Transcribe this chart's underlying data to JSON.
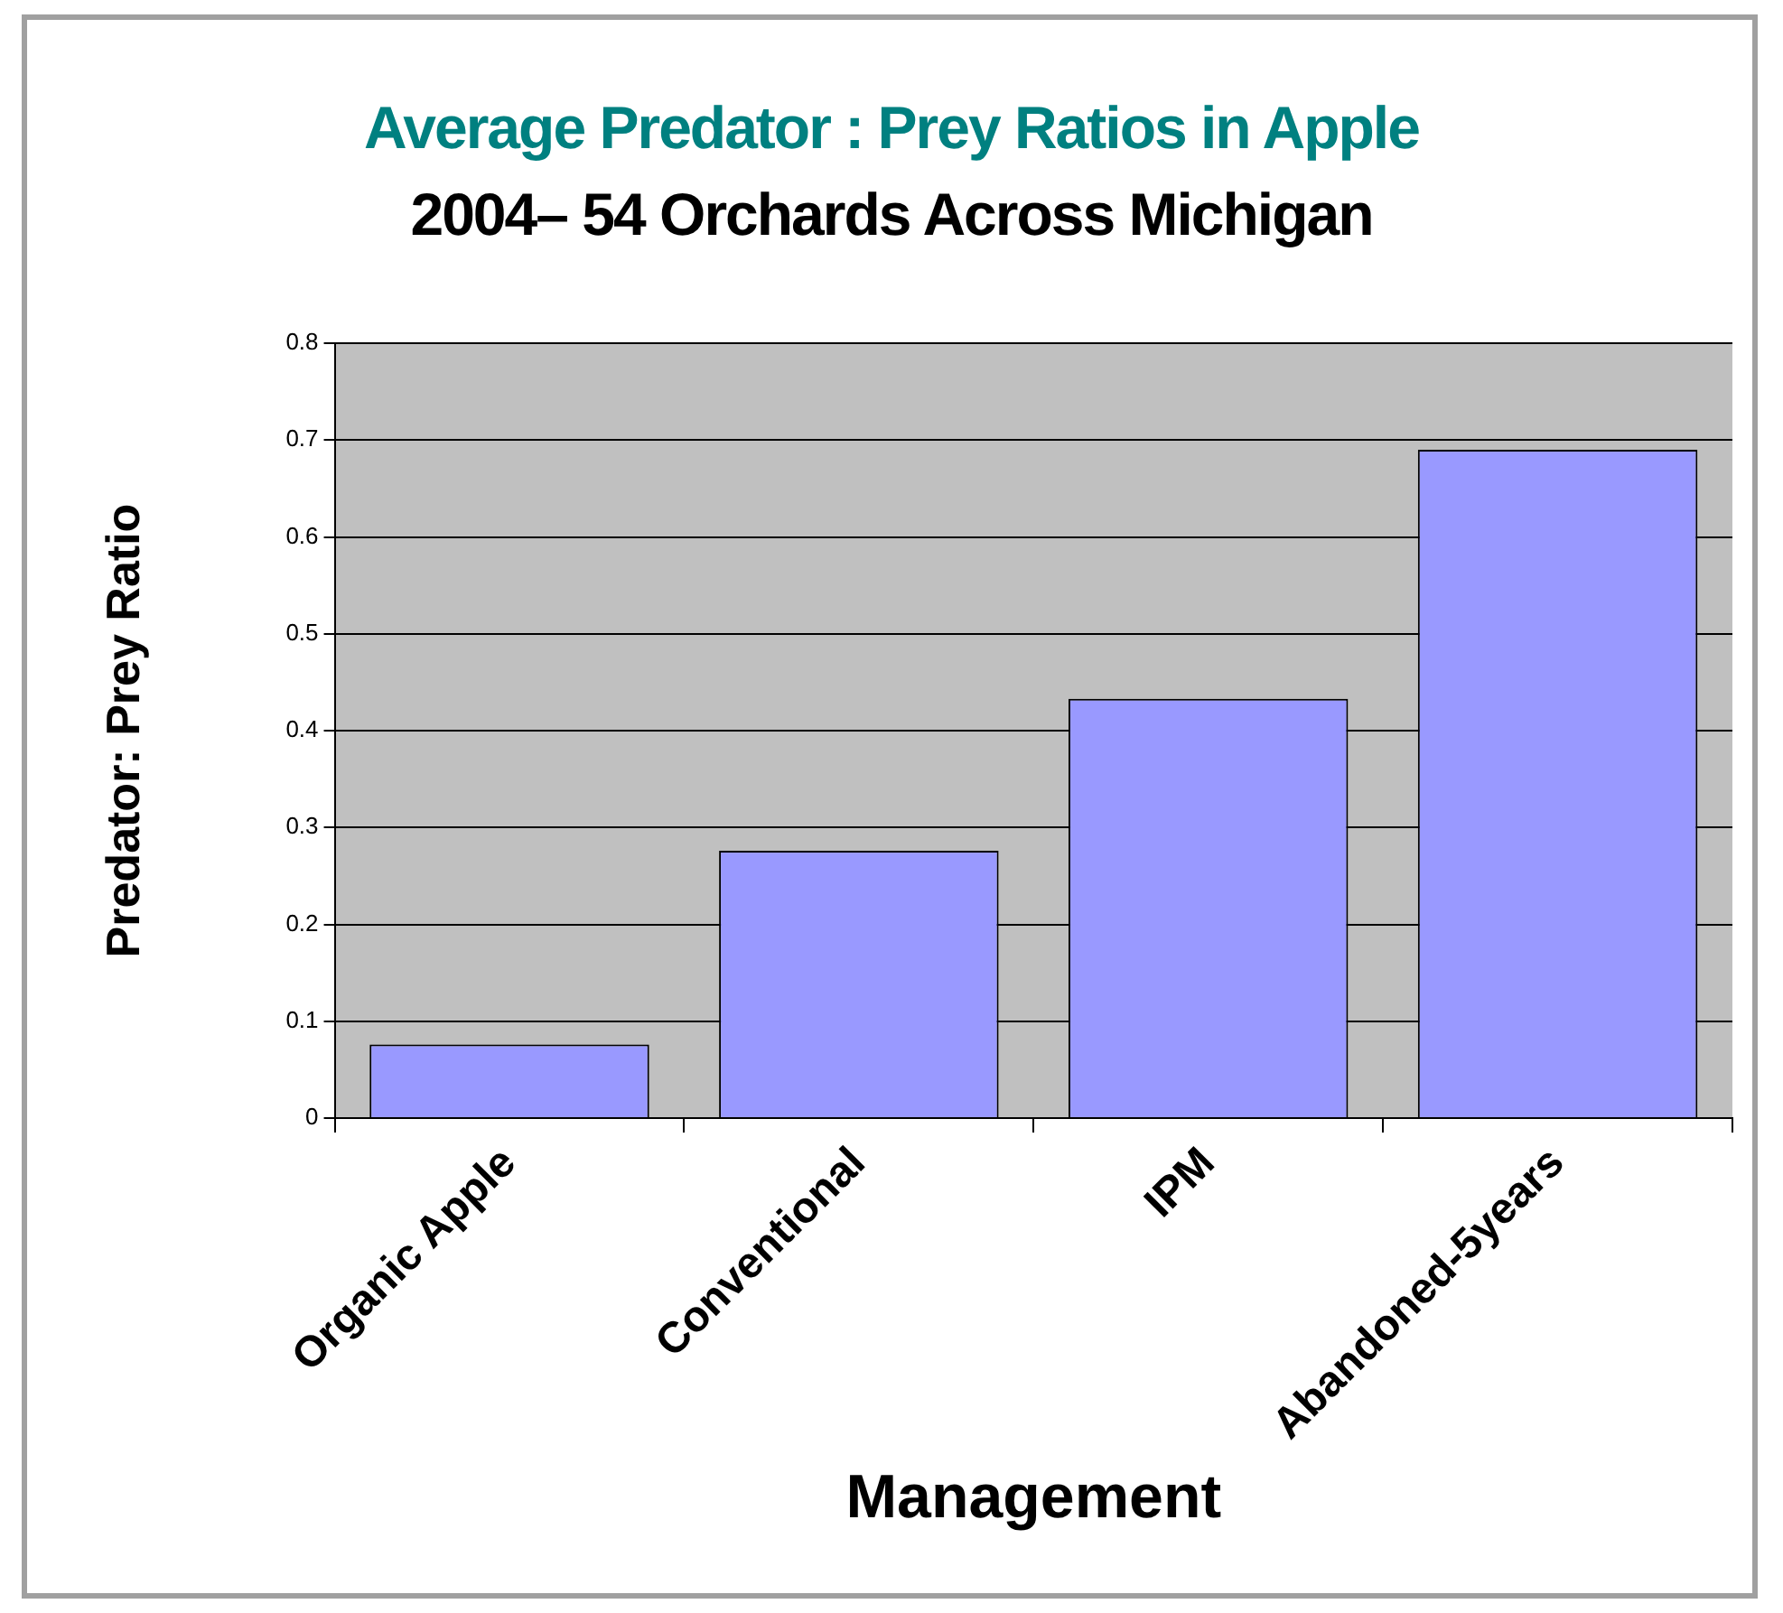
{
  "chart_data": {
    "type": "bar",
    "title": "Average Predator : Prey Ratios in Apple",
    "subtitle": "2004–  54 Orchards Across Michigan",
    "xlabel": "Management",
    "ylabel": "Predator: Prey Ratio",
    "categories": [
      "Organic Apple",
      "Conventional",
      "IPM",
      "Abandoned-5years"
    ],
    "values": [
      0.076,
      0.276,
      0.433,
      0.69
    ],
    "color": "#9999ff",
    "ylim": [
      0,
      0.8
    ],
    "yticks": [
      0,
      0.1,
      0.2,
      0.3,
      0.4,
      0.5,
      0.6,
      0.7,
      0.8
    ],
    "grid": "y",
    "legend": false
  }
}
